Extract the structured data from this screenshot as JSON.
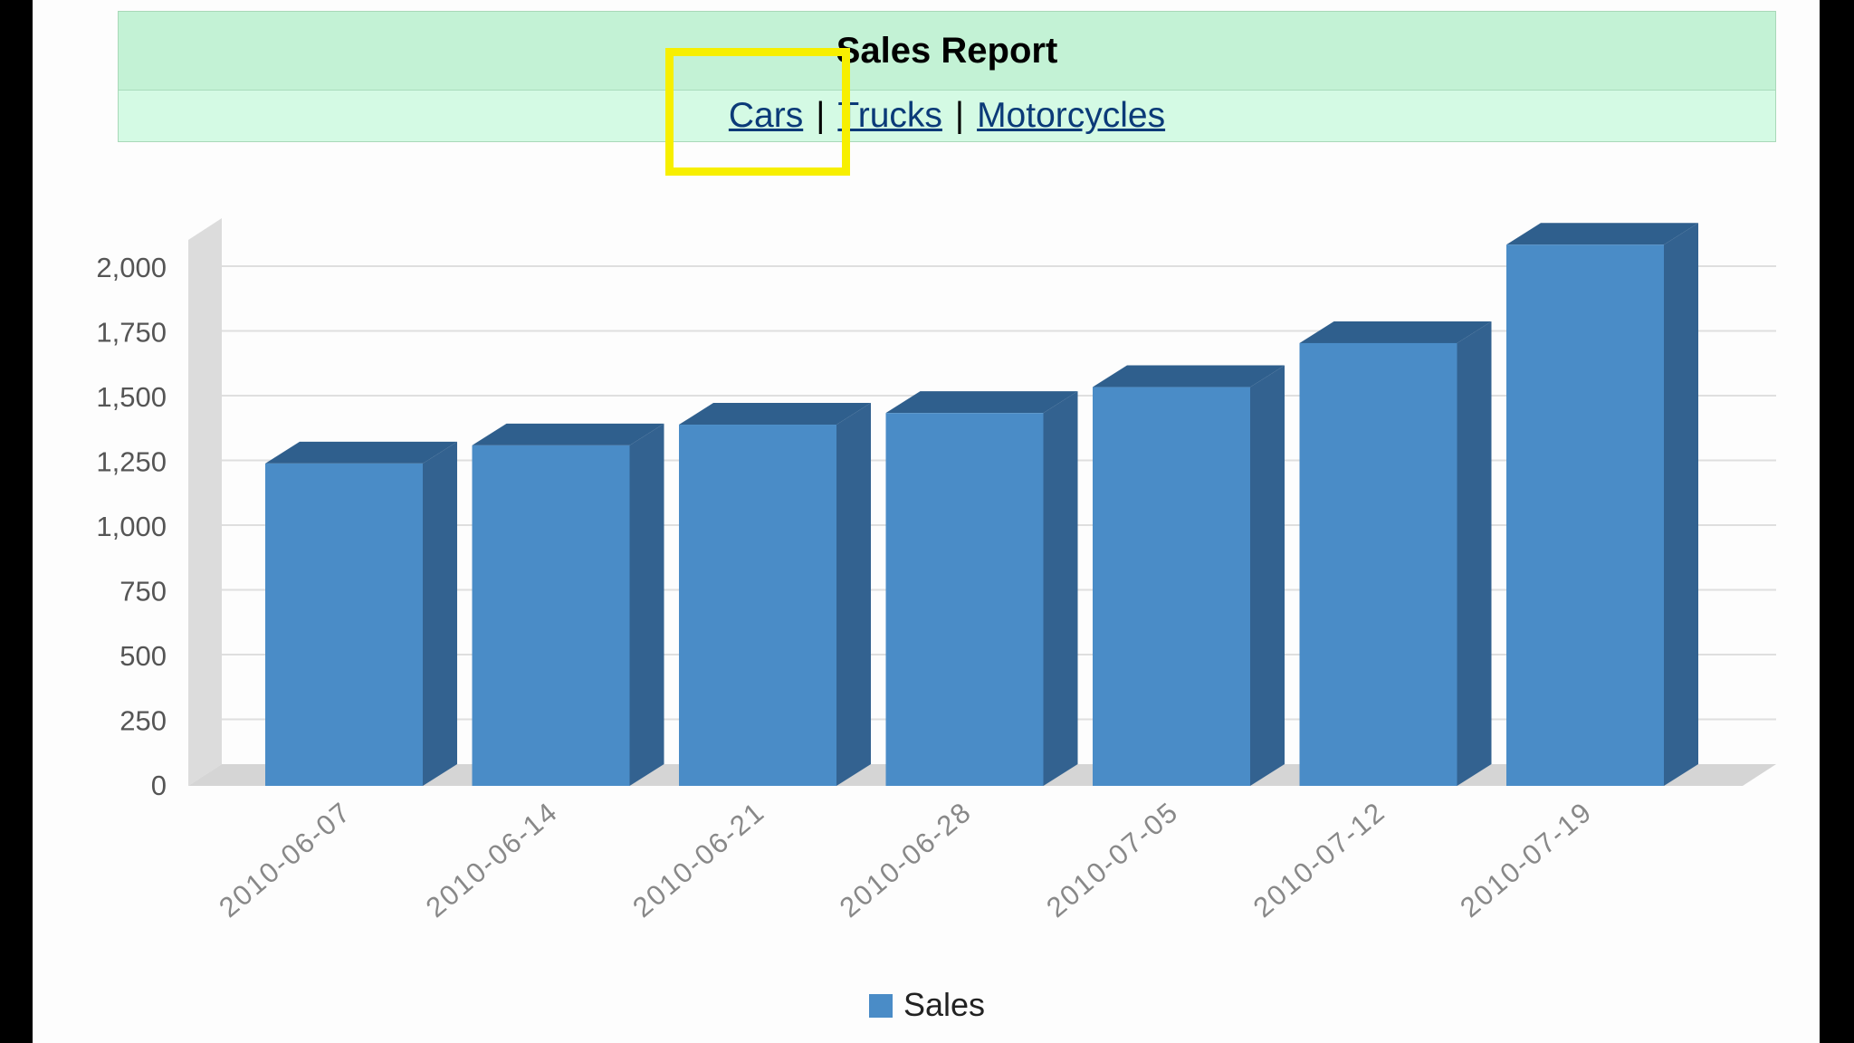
{
  "header": {
    "title": "Sales Report",
    "nav": [
      "Cars",
      "Trucks",
      "Motorcycles"
    ],
    "separator": "|"
  },
  "colors": {
    "header_title_bg": "#c3f2d5",
    "header_nav_bg": "#d4fae4",
    "link": "#0b3a78",
    "highlight": "#f7ef00",
    "bar_front": "#4a8cc7",
    "bar_side": "#336290",
    "bar_top": "#2f5f8d"
  },
  "chart_data": {
    "type": "bar",
    "title": "",
    "categories": [
      "2010-06-07",
      "2010-06-14",
      "2010-06-21",
      "2010-06-28",
      "2010-07-05",
      "2010-07-12",
      "2010-07-19"
    ],
    "series": [
      {
        "name": "Sales",
        "values": [
          1245,
          1315,
          1395,
          1440,
          1540,
          1710,
          2090
        ]
      }
    ],
    "yticks": [
      "0",
      "250",
      "500",
      "750",
      "1,000",
      "1,250",
      "1,500",
      "1,750",
      "2,000"
    ],
    "ylim": [
      0,
      2000
    ],
    "grid": true,
    "legend": "bottom-center",
    "style": "3d"
  }
}
